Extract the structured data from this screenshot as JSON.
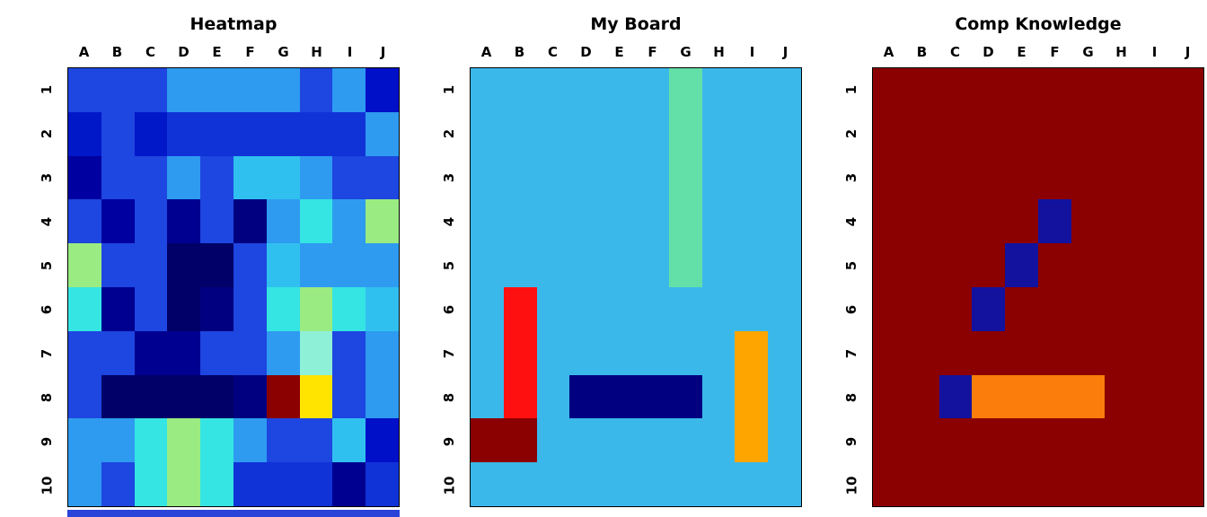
{
  "chart_data": [
    {
      "type": "heatmap",
      "title": "Heatmap",
      "x_labels": [
        "A",
        "B",
        "C",
        "D",
        "E",
        "F",
        "G",
        "H",
        "I",
        "J"
      ],
      "y_labels": [
        "1",
        "2",
        "3",
        "4",
        "5",
        "6",
        "7",
        "8",
        "9",
        "10"
      ],
      "legend": "off",
      "cell_colors": [
        [
          "#1E46E0",
          "#1E46E0",
          "#1E46E0",
          "#2E9BF0",
          "#2E9BF0",
          "#2E9BF0",
          "#2E9BF0",
          "#1E46E0",
          "#2E9BF0",
          "#0010C8"
        ],
        [
          "#0018C8",
          "#1E46E0",
          "#0018C8",
          "#1033D8",
          "#1033D8",
          "#1033D8",
          "#1033D8",
          "#1033D8",
          "#1033D8",
          "#2E9BF0"
        ],
        [
          "#0000A0",
          "#1E46E0",
          "#1E46E0",
          "#2E9BF0",
          "#1E46E0",
          "#30C0F0",
          "#30C0F0",
          "#2E9BF0",
          "#1E46E0",
          "#1E46E0"
        ],
        [
          "#1E46E0",
          "#0000A0",
          "#1E46E0",
          "#000090",
          "#1E46E0",
          "#000080",
          "#2E9BF0",
          "#35E5E3",
          "#2E9BF0",
          "#9AEC82"
        ],
        [
          "#9AEC82",
          "#1E46E0",
          "#1E46E0",
          "#000068",
          "#000068",
          "#1E46E0",
          "#30C0F0",
          "#2E9BF0",
          "#2E9BF0",
          "#2E9BF0"
        ],
        [
          "#35E5E3",
          "#000090",
          "#1E46E0",
          "#000068",
          "#000080",
          "#1E46E0",
          "#35E5E3",
          "#9AEC82",
          "#35E5E3",
          "#30C0F0"
        ],
        [
          "#1E46E0",
          "#1E46E0",
          "#000090",
          "#000090",
          "#1E46E0",
          "#1E46E0",
          "#2E9BF0",
          "#8FF0D8",
          "#1E46E0",
          "#2E9BF0"
        ],
        [
          "#1E46E0",
          "#000068",
          "#000068",
          "#000068",
          "#000068",
          "#000080",
          "#8B0000",
          "#FFE400",
          "#1E46E0",
          "#2E9BF0"
        ],
        [
          "#2E9BF0",
          "#2E9BF0",
          "#35E5E3",
          "#9AEC82",
          "#35E5E3",
          "#2E9BF0",
          "#1E46E0",
          "#1E46E0",
          "#30C0F0",
          "#0010C8"
        ],
        [
          "#2E9BF0",
          "#1E46E0",
          "#35E5E3",
          "#9AEC82",
          "#35E5E3",
          "#1033D8",
          "#1033D8",
          "#1033D8",
          "#000090",
          "#1033D8"
        ]
      ]
    },
    {
      "type": "heatmap",
      "title": "My Board",
      "x_labels": [
        "A",
        "B",
        "C",
        "D",
        "E",
        "F",
        "G",
        "H",
        "I",
        "J"
      ],
      "y_labels": [
        "1",
        "2",
        "3",
        "4",
        "5",
        "6",
        "7",
        "8",
        "9",
        "10"
      ],
      "legend": "off",
      "base_color": "#3BB8EA",
      "features": [
        {
          "label": "ship-aquamarine-vertical",
          "color": "#63E0A8",
          "cells": [
            "G1",
            "G2",
            "G3",
            "G4",
            "G5"
          ]
        },
        {
          "label": "ship-red-vertical",
          "color": "#FF1010",
          "cells": [
            "B6",
            "B7",
            "B8"
          ]
        },
        {
          "label": "hit-darkred",
          "color": "#8B0000",
          "cells": [
            "A9",
            "B9"
          ]
        },
        {
          "label": "ship-navy-horizontal",
          "color": "#000080",
          "cells": [
            "D8",
            "E8",
            "F8",
            "G8"
          ]
        },
        {
          "label": "ship-orange-vertical",
          "color": "#FFA500",
          "cells": [
            "I7",
            "I8",
            "I9"
          ]
        }
      ]
    },
    {
      "type": "heatmap",
      "title": "Comp Knowledge",
      "x_labels": [
        "A",
        "B",
        "C",
        "D",
        "E",
        "F",
        "G",
        "H",
        "I",
        "J"
      ],
      "y_labels": [
        "1",
        "2",
        "3",
        "4",
        "5",
        "6",
        "7",
        "8",
        "9",
        "10"
      ],
      "legend": "off",
      "base_color": "#8B0000",
      "features": [
        {
          "label": "blue-marks-diagonal",
          "color": "#12129E",
          "cells": [
            "F4",
            "E5",
            "D6"
          ]
        },
        {
          "label": "blue-mark",
          "color": "#12129E",
          "cells": [
            "C8"
          ]
        },
        {
          "label": "orange-strip-horizontal",
          "color": "#FB7D0B",
          "cells": [
            "D8",
            "E8",
            "F8",
            "G8"
          ]
        }
      ]
    }
  ],
  "partial_plot_strip": {
    "color": "#2A43D8"
  }
}
